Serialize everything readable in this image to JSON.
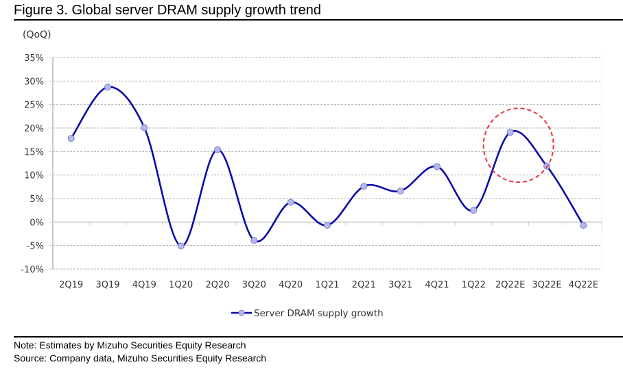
{
  "figure": {
    "title": "Figure 3. Global server DRAM supply growth trend",
    "unit_label": "(QoQ)",
    "note": "Note: Estimates by Mizuho Securities Equity Research",
    "source": "Source: Company data, Mizuho Securities Equity Research"
  },
  "colors": {
    "line": "#0a0aa8",
    "marker_fill": "#b4b8ee",
    "marker_stroke": "#7a7fc4",
    "grid": "#b0b0b0",
    "axis": "#c8c8c8",
    "highlight": "#e8343a"
  },
  "chart_data": {
    "type": "line",
    "title": "Global server DRAM supply growth trend",
    "xlabel": "",
    "ylabel": "(QoQ)",
    "categories": [
      "2Q19",
      "3Q19",
      "4Q19",
      "1Q20",
      "2Q20",
      "3Q20",
      "4Q20",
      "1Q21",
      "2Q21",
      "3Q21",
      "4Q21",
      "1Q22",
      "2Q22E",
      "3Q22E",
      "4Q22E"
    ],
    "series": [
      {
        "name": "Server DRAM supply growth",
        "values": [
          17.8,
          28.7,
          20.1,
          -5.1,
          15.4,
          -3.9,
          4.2,
          -0.7,
          7.6,
          6.6,
          11.8,
          2.5,
          19.1,
          11.9,
          -0.7
        ]
      }
    ],
    "ylim": [
      -10,
      35
    ],
    "yticks": [
      35,
      30,
      25,
      20,
      15,
      10,
      5,
      0,
      -5,
      -10
    ],
    "ytick_labels": [
      "35%",
      "30%",
      "25%",
      "20%",
      "15%",
      "10%",
      "5%",
      "0%",
      "-5%",
      "-10%"
    ],
    "grid": true,
    "legend_position": "bottom-center",
    "smoothed": true,
    "annotations": [
      {
        "type": "dashed-circle",
        "around_category": "2Q22E",
        "color": "red"
      }
    ]
  }
}
